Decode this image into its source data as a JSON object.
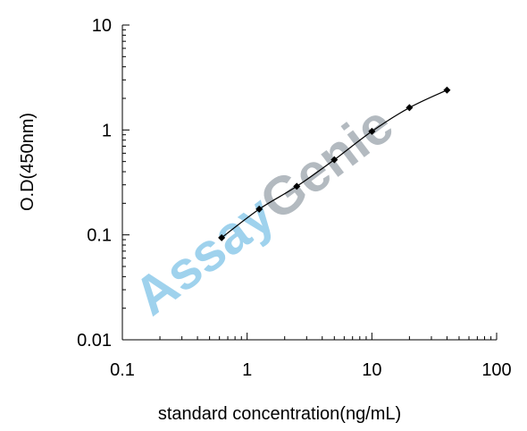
{
  "chart_data": {
    "type": "scatter",
    "xlabel": "standard concentration(ng/mL)",
    "ylabel": "O.D(450nm)",
    "x_scale": "log",
    "y_scale": "log",
    "xlim": [
      0.1,
      100
    ],
    "ylim": [
      0.01,
      10
    ],
    "x_ticks": [
      "0.1",
      "1",
      "10",
      "100"
    ],
    "y_ticks": [
      "0.01",
      "0.1",
      "1",
      "10"
    ],
    "grid": false,
    "series": [
      {
        "x": [
          0.625,
          1.25,
          2.5,
          5,
          10,
          20,
          40
        ],
        "y": [
          0.094,
          0.176,
          0.29,
          0.52,
          0.97,
          1.63,
          2.4
        ],
        "marker": "diamond",
        "color": "#000000",
        "fit_line": true
      }
    ],
    "watermark": {
      "text_part1": "Assay",
      "text_part2": "Genie",
      "color_part1": "#7fc4e8",
      "color_part2": "#9aa3ab"
    }
  }
}
